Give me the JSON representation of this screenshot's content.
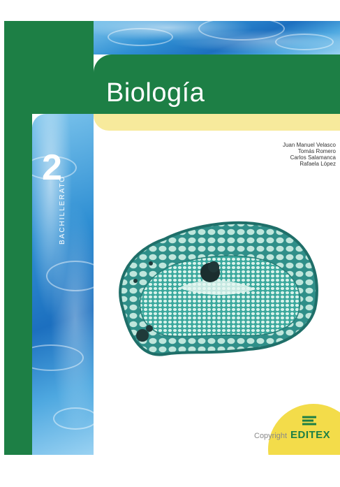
{
  "cover": {
    "title": "Biología",
    "volume_number": "2",
    "volume_label": "BACHILLERATO",
    "authors": [
      "Juan Manuel Velasco",
      "Tomás Romero",
      "Carlos Salamanca",
      "Rafaela López"
    ],
    "publisher": "EDITEX",
    "watermark": "Copyright",
    "figure": "plant-stem-cross-section",
    "colors": {
      "green": "#1d7f45",
      "yellow_band": "#f7ea9c",
      "publisher_circle": "#f3dc4a",
      "water_blue": "#2f8fd3",
      "cell_teal": "#3aa89d"
    }
  }
}
